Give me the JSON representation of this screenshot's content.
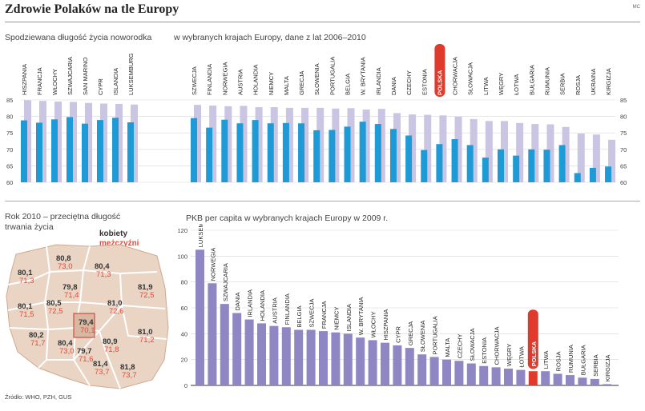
{
  "header": {
    "title": "Zdrowie Polaków na tle Europy",
    "credit": "MC",
    "source": "Źródło: WHO, PZH, GUS"
  },
  "colors": {
    "blue": "#1e9ad6",
    "lavender": "#c9c5e3",
    "purple": "#8f87c3",
    "red": "#e03a2d",
    "map_fill": "#ead4c4",
    "map_border": "#ffffff"
  },
  "chart_data": [
    {
      "type": "bar",
      "title_left": "Spodziewana długość życia noworodka",
      "title_right": "w wybranych krajach Europy, dane z lat 2006–2010",
      "ylim": [
        60,
        85
      ],
      "yticks": [
        60,
        65,
        70,
        75,
        80,
        85
      ],
      "highlight": "POLSKA",
      "categories": [
        "HISZPANIA",
        "FRANCJA",
        "WŁOCHY",
        "SZWAJCARIA",
        "SAN MARINO",
        "CYPR",
        "ISLANDIA",
        "LUKSEMBURG",
        "SZWECJA",
        "FINLANDIA",
        "NORWEGIA",
        "AUSTRIA",
        "HOLANDIA",
        "NIEMCY",
        "MALTA",
        "GRECJA",
        "SŁOWENIA",
        "PORTUGALIA",
        "BELGIA",
        "W. BRYTANIA",
        "IRLANDIA",
        "DANIA",
        "CZECHY",
        "ESTONIA",
        "POLSKA",
        "CHORWACJA",
        "SŁOWACJA",
        "LITWA",
        "WĘGRY",
        "ŁOTWA",
        "BUŁGARIA",
        "RUMUNIA",
        "SERBIA",
        "ROSJA",
        "UKRAINA",
        "KIRGIZJA"
      ],
      "series": [
        {
          "name": "kobiety",
          "values": [
            84.9,
            84.7,
            84.5,
            84.4,
            84.1,
            83.9,
            83.8,
            83.6,
            83.5,
            83.3,
            83.1,
            83.2,
            82.8,
            82.8,
            82.6,
            82.6,
            82.6,
            82.4,
            82.5,
            82.1,
            82.3,
            81.0,
            80.6,
            80.5,
            80.3,
            79.9,
            79.2,
            78.6,
            78.6,
            78.0,
            77.7,
            77.6,
            76.8,
            74.8,
            74.5,
            72.9
          ]
        },
        {
          "name": "mężczyźni",
          "values": [
            78.8,
            78.1,
            79.1,
            79.8,
            77.8,
            78.9,
            79.6,
            78.2,
            79.5,
            76.6,
            79.0,
            77.9,
            78.9,
            77.9,
            78.0,
            77.9,
            75.8,
            75.9,
            76.9,
            78.4,
            77.7,
            76.2,
            74.2,
            69.8,
            71.6,
            73.1,
            71.3,
            67.5,
            70.0,
            68.1,
            70.0,
            69.9,
            71.3,
            62.8,
            64.4,
            64.8
          ]
        }
      ],
      "legend": {
        "female": "kobiety",
        "male": "mężczyźni"
      }
    },
    {
      "type": "bar",
      "title": "PKB per capita w wybranych krajach Europy w 2009 r.",
      "ylim": [
        0,
        120
      ],
      "yticks": [
        0,
        20,
        40,
        60,
        80,
        100,
        120
      ],
      "highlight": "POLSKA",
      "categories": [
        "LUKSEMBURG",
        "NORWEGIA",
        "SZWAJCARIA",
        "DANIA",
        "IRLANDIA",
        "HOLANDIA",
        "AUSTRIA",
        "FINLANDIA",
        "BELGIA",
        "SZWECJA",
        "FRANCJA",
        "NIEMCY",
        "ISLANDIA",
        "W. BRYTANIA",
        "WŁOCHY",
        "HISZPANIA",
        "CYPR",
        "GRECJA",
        "SŁOWENIA",
        "PORTUGALIA",
        "MALTA",
        "CZECHY",
        "SŁOWACJA",
        "ESTONIA",
        "CHORWACJA",
        "WĘGRY",
        "ŁOTWA",
        "POLSKA",
        "LITWA",
        "ROSJA",
        "RUMUNIA",
        "BUŁGARIA",
        "SERBIA",
        "KIRGIZJA"
      ],
      "values": [
        105,
        79,
        63,
        56,
        51,
        48,
        46,
        45,
        43,
        43,
        42,
        41,
        40,
        37,
        35,
        33,
        31,
        29,
        24,
        22,
        20,
        19,
        17,
        15,
        14,
        13,
        12,
        11,
        11,
        9,
        8,
        6,
        5,
        1
      ]
    }
  ],
  "map": {
    "title": "Rok 2010 – przeciętna długość trwania życia",
    "legend_female": "kobiety",
    "legend_male": "mężczyźni",
    "regions": [
      {
        "female": "80,8",
        "male": "73,0"
      },
      {
        "female": "80,1",
        "male": "71,3"
      },
      {
        "female": "80,4",
        "male": "71,3"
      },
      {
        "female": "79,8",
        "male": "71,4"
      },
      {
        "female": "81,9",
        "male": "72,5"
      },
      {
        "female": "80,1",
        "male": "71,5"
      },
      {
        "female": "80,5",
        "male": "72,5"
      },
      {
        "female": "81,0",
        "male": "72,6"
      },
      {
        "female": "79,4",
        "male": "70,1"
      },
      {
        "female": "80,2",
        "male": "71,7"
      },
      {
        "female": "81,0",
        "male": "71,2"
      },
      {
        "female": "80,4",
        "male": "73,0"
      },
      {
        "female": "80,9",
        "male": "71,8"
      },
      {
        "female": "79,7",
        "male": "71,6"
      },
      {
        "female": "81,4",
        "male": "73,7"
      },
      {
        "female": "81,8",
        "male": "73,7"
      }
    ]
  }
}
